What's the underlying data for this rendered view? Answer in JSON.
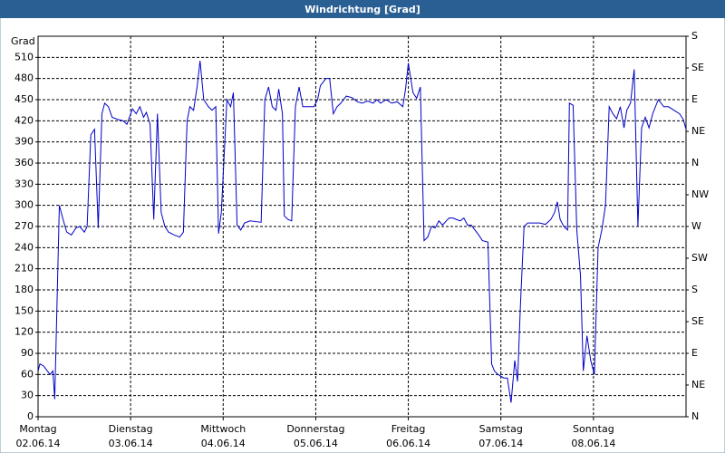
{
  "chart_data": {
    "type": "line",
    "title": "Windrichtung [Grad]",
    "ylabel": "Grad",
    "xlim": [
      0,
      7
    ],
    "xticks": [
      {
        "value": 0,
        "label": [
          "Montag",
          "02.06.14"
        ]
      },
      {
        "value": 1,
        "label": [
          "Dienstag",
          "03.06.14"
        ]
      },
      {
        "value": 2,
        "label": [
          "Mittwoch",
          "04.06.14"
        ]
      },
      {
        "value": 3,
        "label": [
          "Donnerstag",
          "05.06.14"
        ]
      },
      {
        "value": 4,
        "label": [
          "Freitag",
          "06.06.14"
        ]
      },
      {
        "value": 5,
        "label": [
          "Samstag",
          "07.06.14"
        ]
      },
      {
        "value": 6,
        "label": [
          "Sonntag",
          "08.06.14"
        ]
      }
    ],
    "ylim": [
      0,
      540
    ],
    "yticks": [
      0,
      30,
      60,
      90,
      120,
      150,
      180,
      210,
      240,
      270,
      300,
      330,
      360,
      390,
      420,
      450,
      480,
      510
    ],
    "y2lim": [
      0,
      540
    ],
    "y2ticks": [
      {
        "value": 0,
        "label": "N"
      },
      {
        "value": 45,
        "label": "NE"
      },
      {
        "value": 90,
        "label": "E"
      },
      {
        "value": 135,
        "label": "SE"
      },
      {
        "value": 180,
        "label": "S"
      },
      {
        "value": 225,
        "label": "SW"
      },
      {
        "value": 270,
        "label": "W"
      },
      {
        "value": 315,
        "label": "NW"
      },
      {
        "value": 360,
        "label": "N"
      },
      {
        "value": 405,
        "label": "NE"
      },
      {
        "value": 450,
        "label": "E"
      },
      {
        "value": 495,
        "label": "SE"
      },
      {
        "value": 540,
        "label": "S"
      }
    ],
    "grid": true,
    "series": [
      {
        "color": "#0000c8",
        "x": [
          0,
          0.02,
          0.06,
          0.1,
          0.13,
          0.16,
          0.18,
          0.23,
          0.27,
          0.31,
          0.36,
          0.41,
          0.45,
          0.5,
          0.53,
          0.57,
          0.61,
          0.65,
          0.69,
          0.72,
          0.76,
          0.8,
          0.86,
          0.92,
          0.96,
          1.02,
          1.06,
          1.1,
          1.14,
          1.17,
          1.21,
          1.25,
          1.29,
          1.33,
          1.37,
          1.41,
          1.47,
          1.53,
          1.57,
          1.61,
          1.64,
          1.68,
          1.72,
          1.75,
          1.79,
          1.84,
          1.88,
          1.92,
          1.95,
          1.98,
          2.04,
          2.08,
          2.11,
          2.15,
          2.19,
          2.23,
          2.29,
          2.35,
          2.41,
          2.45,
          2.49,
          2.53,
          2.57,
          2.6,
          2.64,
          2.66,
          2.7,
          2.74,
          2.78,
          2.82,
          2.86,
          2.92,
          2.98,
          3.02,
          3.05,
          3.11,
          3.15,
          3.19,
          3.23,
          3.27,
          3.33,
          3.39,
          3.45,
          3.5,
          3.56,
          3.62,
          3.66,
          3.7,
          3.76,
          3.82,
          3.88,
          3.94,
          3.97,
          4.0,
          4.05,
          4.09,
          4.13,
          4.17,
          4.21,
          4.25,
          4.29,
          4.33,
          4.37,
          4.41,
          4.44,
          4.48,
          4.52,
          4.56,
          4.6,
          4.64,
          4.68,
          4.72,
          4.76,
          4.8,
          4.86,
          4.9,
          4.93,
          4.97,
          5.03,
          5.07,
          5.11,
          5.15,
          5.18,
          5.21,
          5.25,
          5.29,
          5.37,
          5.42,
          5.48,
          5.54,
          5.58,
          5.61,
          5.64,
          5.68,
          5.72,
          5.74,
          5.78,
          5.82,
          5.86,
          5.89,
          5.93,
          5.97,
          6.01,
          6.05,
          6.09,
          6.13,
          6.17,
          6.21,
          6.25,
          6.29,
          6.33,
          6.36,
          6.4,
          6.44,
          6.48,
          6.52,
          6.56,
          6.6,
          6.64,
          6.7,
          6.76,
          6.81,
          6.87,
          6.93,
          6.97,
          7.0
        ],
        "values": [
          65,
          75,
          72,
          65,
          60,
          65,
          25,
          300,
          280,
          262,
          258,
          268,
          270,
          262,
          270,
          400,
          408,
          268,
          430,
          445,
          440,
          425,
          422,
          420,
          415,
          437,
          430,
          440,
          425,
          432,
          415,
          280,
          430,
          290,
          270,
          262,
          258,
          255,
          262,
          420,
          440,
          435,
          470,
          505,
          450,
          440,
          435,
          440,
          260,
          290,
          450,
          440,
          460,
          272,
          265,
          275,
          278,
          277,
          276,
          450,
          468,
          440,
          435,
          465,
          430,
          285,
          280,
          278,
          440,
          468,
          440,
          440,
          440,
          450,
          470,
          480,
          480,
          430,
          440,
          445,
          455,
          453,
          447,
          445,
          448,
          445,
          450,
          445,
          450,
          445,
          447,
          440,
          465,
          502,
          460,
          452,
          468,
          250,
          255,
          270,
          268,
          278,
          272,
          278,
          282,
          282,
          280,
          278,
          282,
          272,
          272,
          265,
          258,
          250,
          248,
          75,
          65,
          60,
          55,
          55,
          20,
          80,
          50,
          155,
          270,
          275,
          275,
          275,
          273,
          280,
          290,
          305,
          280,
          270,
          265,
          445,
          442,
          265,
          200,
          65,
          115,
          80,
          60,
          240,
          265,
          300,
          440,
          430,
          423,
          440,
          410,
          435,
          445,
          493,
          270,
          410,
          425,
          410,
          430,
          450,
          440,
          440,
          435,
          430,
          422,
          408
        ]
      }
    ]
  }
}
